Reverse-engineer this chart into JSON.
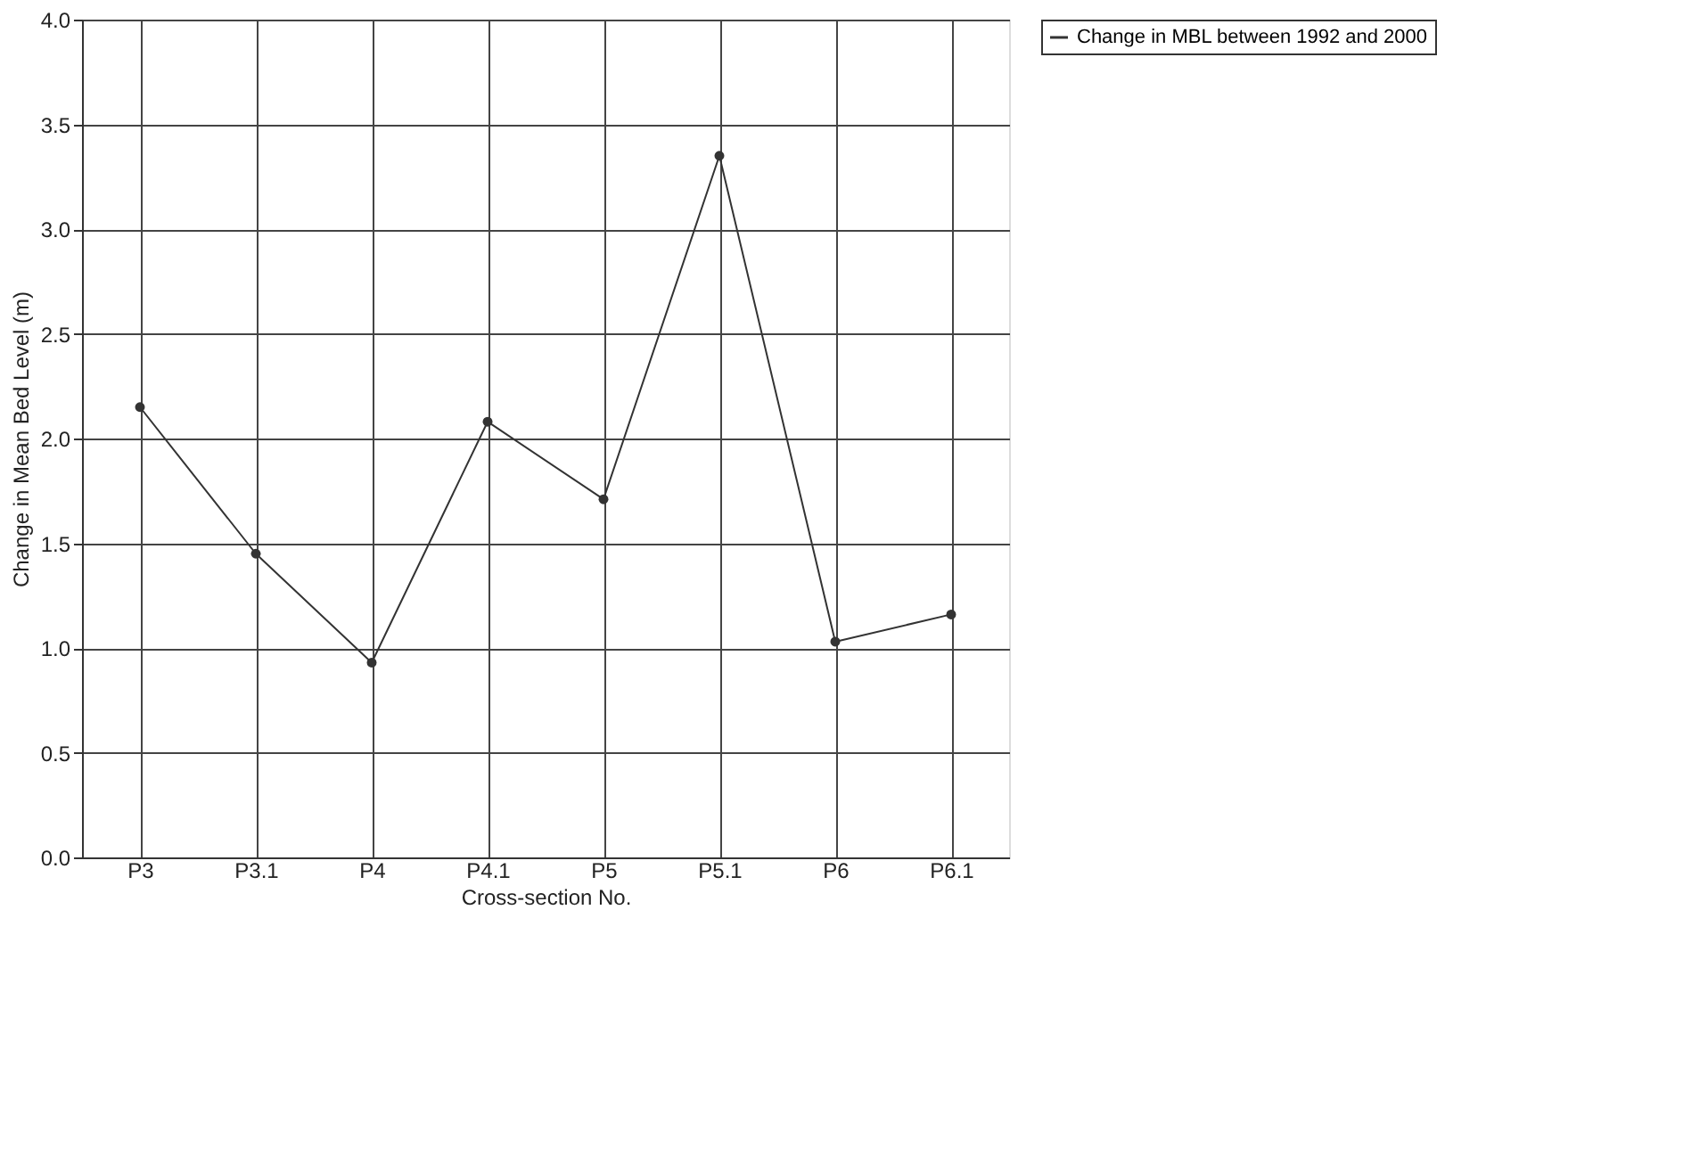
{
  "chart_data": {
    "type": "line",
    "xlabel": "Cross-section No.",
    "ylabel": "Change in Mean Bed Level (m)",
    "categories": [
      "P3",
      "P3.1",
      "P4",
      "P4.1",
      "P5",
      "P5.1",
      "P6",
      "P6.1"
    ],
    "series": [
      {
        "name": "Change in MBL between 1992 and 2000",
        "color": "#333333",
        "values": [
          2.15,
          1.45,
          0.93,
          2.08,
          1.71,
          3.35,
          1.03,
          1.16
        ]
      }
    ],
    "ylim": [
      0,
      4
    ],
    "yticks": [
      {
        "value": 0,
        "label": "0.0"
      },
      {
        "value": 0.5,
        "label": "0.5"
      },
      {
        "value": 1,
        "label": "1.0"
      },
      {
        "value": 1.5,
        "label": "1.5"
      },
      {
        "value": 2,
        "label": "2.0"
      },
      {
        "value": 2.5,
        "label": "2.5"
      },
      {
        "value": 3,
        "label": "3.0"
      },
      {
        "value": 3.5,
        "label": "3.5"
      },
      {
        "value": 4,
        "label": "4.0"
      }
    ],
    "grid": true,
    "legend": "right",
    "marker": "circle",
    "line_style": "solid"
  }
}
